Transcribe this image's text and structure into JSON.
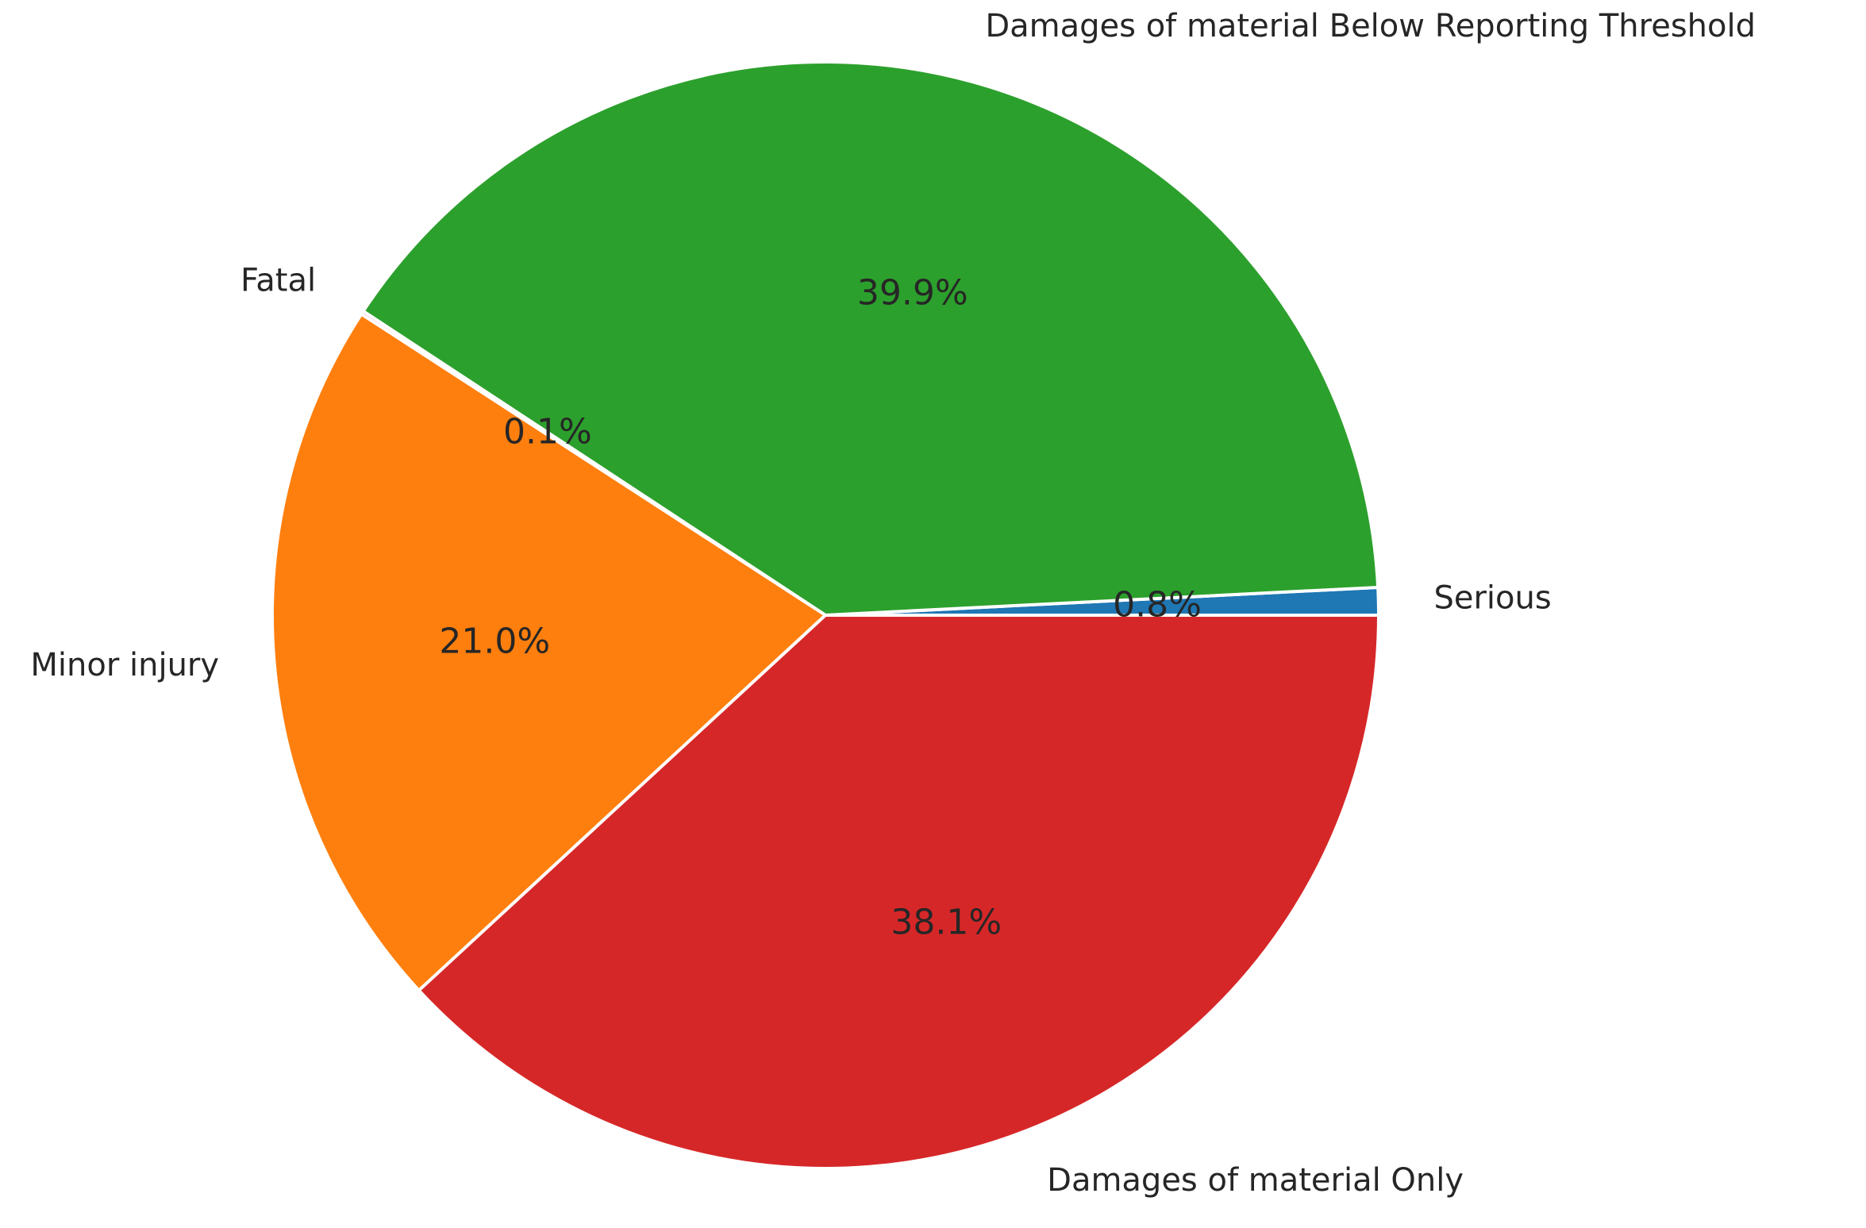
{
  "chart_data": {
    "type": "pie",
    "title": "",
    "start_angle_deg": 0,
    "direction": "counterclockwise",
    "slices": [
      {
        "label": "Serious",
        "percent": 0.8,
        "pct_label": "0.8%",
        "color": "#1f77b4"
      },
      {
        "label": "Damages of material Below Reporting Threshold",
        "percent": 39.9,
        "pct_label": "39.9%",
        "color": "#2ca02c"
      },
      {
        "label": "Fatal",
        "percent": 0.1,
        "pct_label": "0.1%",
        "color": "#e377c2"
      },
      {
        "label": "Minor injury",
        "percent": 21.0,
        "pct_label": "21.0%",
        "color": "#ff7f0e"
      },
      {
        "label": "Damages of material Only",
        "percent": 38.1,
        "pct_label": "38.1%",
        "color": "#d62728"
      }
    ]
  }
}
